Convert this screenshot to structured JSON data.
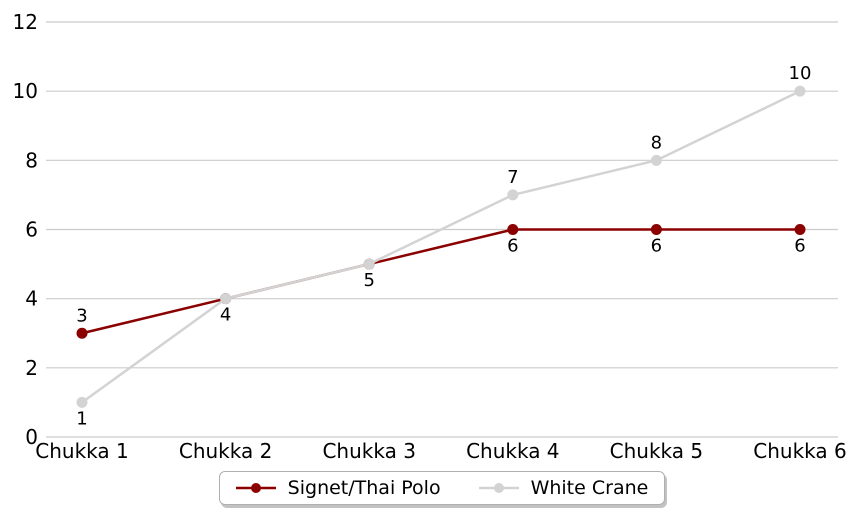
{
  "chart_data": {
    "type": "line",
    "title": "",
    "xlabel": "",
    "ylabel": "",
    "categories": [
      "Chukka 1",
      "Chukka 2",
      "Chukka 3",
      "Chukka 4",
      "Chukka 5",
      "Chukka 6"
    ],
    "series": [
      {
        "name": "Signet/Thai Polo",
        "color": "#8B0000",
        "values": [
          3,
          4,
          5,
          6,
          6,
          6
        ],
        "label_positions": [
          "above",
          "below",
          "below",
          "below",
          "below",
          "below"
        ]
      },
      {
        "name": "White Crane",
        "color": "#D3D3D3",
        "values": [
          1,
          4,
          5,
          7,
          8,
          10
        ],
        "label_positions": [
          "below",
          "none",
          "none",
          "above",
          "above",
          "above"
        ]
      }
    ],
    "yticks": [
      0,
      2,
      4,
      6,
      8,
      10,
      12
    ],
    "ylim": [
      0,
      12
    ],
    "grid": true,
    "grid_color": "#cccccc",
    "text_color": "#000000",
    "background_color": "#ffffff",
    "legend_position": "bottom-center",
    "legend_border_color": "#b0b0b0"
  }
}
